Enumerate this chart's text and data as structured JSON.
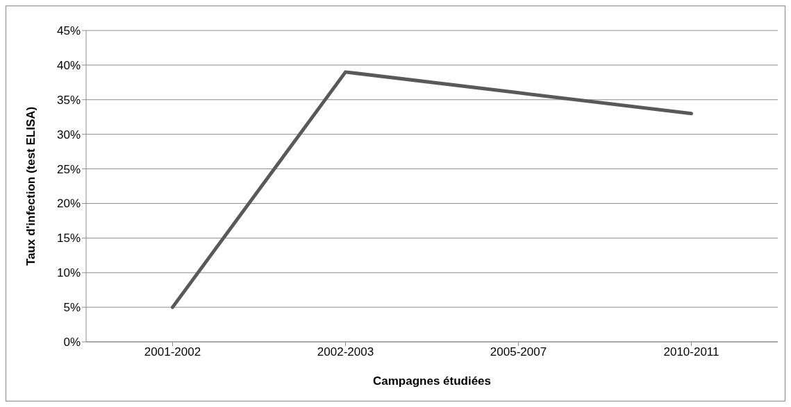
{
  "chart_data": {
    "type": "line",
    "xlabel": "Campagnes étudiées",
    "ylabel": "Taux d'infection (test ELISA)",
    "categories": [
      "2001-2002",
      "2002-2003",
      "2005-2007",
      "2010-2011"
    ],
    "series": [
      {
        "color": "#595959",
        "values": [
          5,
          39,
          36,
          33
        ]
      }
    ],
    "ylim": [
      0,
      45
    ],
    "yticks": [
      {
        "value": 0,
        "label": "0%"
      },
      {
        "value": 5,
        "label": "5%"
      },
      {
        "value": 10,
        "label": "10%"
      },
      {
        "value": 15,
        "label": "15%"
      },
      {
        "value": 20,
        "label": "20%"
      },
      {
        "value": 25,
        "label": "25%"
      },
      {
        "value": 30,
        "label": "30%"
      },
      {
        "value": 35,
        "label": "35%"
      },
      {
        "value": 40,
        "label": "40%"
      },
      {
        "value": 45,
        "label": "45%"
      }
    ],
    "grid": "y",
    "marker": "none",
    "legend": false
  }
}
